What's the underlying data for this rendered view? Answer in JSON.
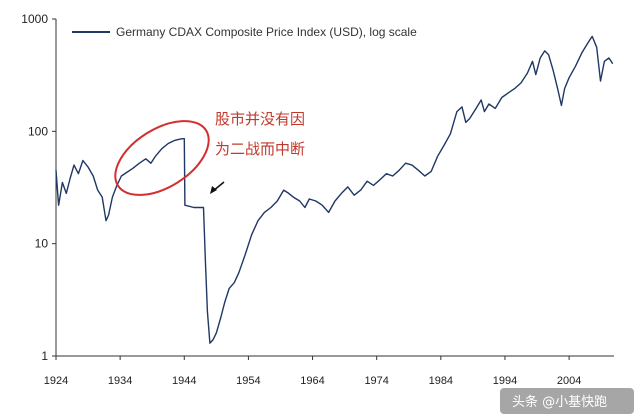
{
  "chart_data": {
    "type": "line",
    "title": "",
    "xlabel": "",
    "ylabel": "",
    "y_scale": "log",
    "ylim": [
      1,
      1000
    ],
    "xlim": [
      1924,
      2011
    ],
    "y_ticks": [
      1,
      10,
      100,
      1000
    ],
    "y_tick_labels": [
      "1",
      "10",
      "100",
      "1000"
    ],
    "x_ticks": [
      1924,
      1934,
      1944,
      1954,
      1964,
      1974,
      1984,
      1994,
      2004
    ],
    "x_tick_labels": [
      "1924",
      "1934",
      "1944",
      "1954",
      "1964",
      "1974",
      "1984",
      "1994",
      "2004"
    ],
    "grid": false,
    "legend_position": "top-left",
    "series": [
      {
        "name": "Germany CDAX Composite Price Index (USD), log scale",
        "color": "#1f3864",
        "x": [
          1924.0,
          1924.4,
          1925.0,
          1925.6,
          1926.2,
          1926.8,
          1927.5,
          1928.2,
          1929.0,
          1929.8,
          1930.5,
          1931.2,
          1931.8,
          1932.2,
          1932.8,
          1933.5,
          1934.2,
          1935.0,
          1936.0,
          1937.0,
          1938.0,
          1938.8,
          1939.5,
          1940.5,
          1941.5,
          1942.5,
          1943.2,
          1943.7,
          1944.0,
          1944.1,
          1945.5,
          1946.9,
          1947.0,
          1947.3,
          1947.6,
          1948.0,
          1948.5,
          1949.0,
          1949.7,
          1950.3,
          1951.0,
          1951.8,
          1952.5,
          1953.5,
          1954.5,
          1955.5,
          1956.5,
          1957.5,
          1958.5,
          1959.5,
          1960.3,
          1961.0,
          1962.0,
          1962.8,
          1963.5,
          1964.5,
          1965.5,
          1966.5,
          1967.5,
          1968.5,
          1969.5,
          1970.5,
          1971.5,
          1972.5,
          1973.5,
          1974.5,
          1975.5,
          1976.5,
          1977.5,
          1978.5,
          1979.5,
          1980.5,
          1981.5,
          1982.5,
          1983.5,
          1984.5,
          1985.5,
          1986.5,
          1987.3,
          1987.9,
          1988.5,
          1989.5,
          1990.3,
          1990.8,
          1991.5,
          1992.5,
          1993.5,
          1994.5,
          1995.5,
          1996.5,
          1997.5,
          1998.3,
          1998.8,
          1999.5,
          2000.2,
          2000.8,
          2001.5,
          2002.2,
          2002.8,
          2003.3,
          2004.0,
          2005.0,
          2006.0,
          2007.0,
          2007.6,
          2008.3,
          2008.9,
          2009.5,
          2010.2,
          2010.8
        ],
        "y": [
          45,
          22,
          35,
          28,
          38,
          50,
          42,
          55,
          48,
          40,
          30,
          26,
          16,
          18,
          26,
          33,
          40,
          43,
          47,
          52,
          57,
          52,
          60,
          70,
          78,
          83,
          85,
          86,
          86,
          22,
          21,
          21,
          21,
          7,
          2.5,
          1.3,
          1.4,
          1.6,
          2.2,
          3.0,
          4.0,
          4.5,
          5.5,
          8.0,
          12.0,
          16.0,
          19.0,
          21.0,
          24.0,
          30.0,
          28.0,
          26.0,
          24.0,
          21.0,
          25.0,
          24.0,
          22.0,
          19.0,
          24.0,
          28.0,
          32.0,
          27.0,
          30.0,
          36.0,
          33.0,
          37.0,
          42.0,
          40.0,
          45.0,
          52.0,
          50.0,
          45.0,
          40.0,
          44.0,
          60.0,
          75.0,
          95.0,
          150.0,
          165.0,
          120.0,
          130.0,
          160.0,
          190.0,
          150.0,
          175.0,
          160.0,
          200.0,
          220.0,
          240.0,
          270.0,
          330.0,
          420.0,
          320.0,
          450.0,
          520.0,
          480.0,
          350.0,
          240.0,
          170.0,
          240.0,
          300.0,
          380.0,
          500.0,
          620.0,
          700.0,
          560.0,
          280.0,
          420.0,
          450.0,
          400.0
        ]
      }
    ],
    "annotations": [
      {
        "text_line1": "股市并没有因",
        "text_line2": "为二战而中断",
        "color": "#c0392b"
      }
    ]
  },
  "watermark": "头条 @小基快跑"
}
